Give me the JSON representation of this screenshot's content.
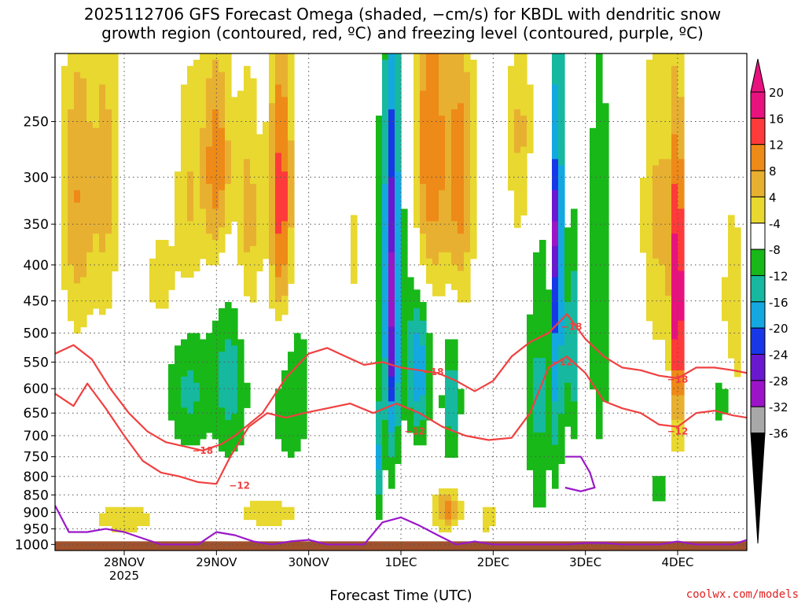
{
  "title": "2025112706 GFS Forecast Omega (shaded, −cm/s) for KBDL with dendritic snow\ngrowth region (contoured, red, ºC) and freezing level (contoured, purple, ºC)",
  "credit": "coolwx.com/models",
  "colors": {
    "strong_up": "#e8127e",
    "up_red": "#ff3a3a",
    "up_orange": "#ee8a18",
    "up_lightorange": "#e8b030",
    "up_yellow": "#e8d830",
    "down_green": "#18b818",
    "down_teal": "#16b8a0",
    "down_cyan": "#14a8e0",
    "down_blue": "#1838e8",
    "down_violet": "#6a18d0",
    "down_purple": "#9c14c8",
    "down_gray": "#a8a8a8",
    "ground": "#a0522d",
    "dgz_red": "#f04040",
    "freezing_purple": "#9a18c8",
    "grid": "#555555"
  },
  "chart_data": {
    "type": "heatmap",
    "title": "2025112706 GFS Forecast Omega (shaded, −cm/s) for KBDL with dendritic snow growth region (contoured, red, ºC) and freezing level (contoured, purple, ºC)",
    "xlabel": "Forecast Time (UTC)",
    "ylabel": "",
    "x_ticks": [
      {
        "value": 1.0,
        "label": "28NOV",
        "sublabel": "2025"
      },
      {
        "value": 2.0,
        "label": "29NOV"
      },
      {
        "value": 3.0,
        "label": "30NOV"
      },
      {
        "value": 4.0,
        "label": "1DEC"
      },
      {
        "value": 5.0,
        "label": "2DEC"
      },
      {
        "value": 6.0,
        "label": "3DEC"
      },
      {
        "value": 7.0,
        "label": "4DEC"
      }
    ],
    "xlim": [
      0.25,
      7.75
    ],
    "y_ticks": [
      250,
      300,
      350,
      400,
      450,
      500,
      550,
      600,
      650,
      700,
      750,
      800,
      850,
      900,
      950,
      1000
    ],
    "ylim": [
      1020,
      200
    ],
    "colorbar": {
      "labels": [
        20,
        16,
        12,
        8,
        4,
        -4,
        -8,
        -12,
        -16,
        -20,
        -24,
        -28,
        -32,
        -36
      ],
      "bands": [
        {
          "color": "#e8127e"
        },
        {
          "color": "#ff3a3a"
        },
        {
          "color": "#ee8a18"
        },
        {
          "color": "#e8b030"
        },
        {
          "color": "#e8d830"
        },
        {
          "color": "#ffffff"
        },
        {
          "color": "#18b818"
        },
        {
          "color": "#16b8a0"
        },
        {
          "color": "#14a8e0"
        },
        {
          "color": "#1838e8"
        },
        {
          "color": "#6a18d0"
        },
        {
          "color": "#9c14c8"
        },
        {
          "color": "#a8a8a8"
        }
      ]
    },
    "omega_features": [
      {
        "t": 0.5,
        "p": 320,
        "st": 0.18,
        "sp": 170,
        "v": 12
      },
      {
        "t": 0.8,
        "p": 300,
        "st": 0.14,
        "sp": 180,
        "v": 9
      },
      {
        "t": 1.4,
        "p": 420,
        "st": 0.16,
        "sp": 70,
        "v": 7
      },
      {
        "t": 1.7,
        "p": 330,
        "st": 0.15,
        "sp": 140,
        "v": 8
      },
      {
        "t": 2.0,
        "p": 290,
        "st": 0.16,
        "sp": 110,
        "v": 15
      },
      {
        "t": 2.35,
        "p": 350,
        "st": 0.14,
        "sp": 150,
        "v": 10
      },
      {
        "t": 2.7,
        "p": 330,
        "st": 0.13,
        "sp": 170,
        "v": 19
      },
      {
        "t": 3.5,
        "p": 380,
        "st": 0.1,
        "sp": 90,
        "v": 6
      },
      {
        "t": 4.3,
        "p": 280,
        "st": 0.22,
        "sp": 180,
        "v": 18
      },
      {
        "t": 4.65,
        "p": 300,
        "st": 0.15,
        "sp": 150,
        "v": 13
      },
      {
        "t": 5.3,
        "p": 260,
        "st": 0.14,
        "sp": 110,
        "v": 9
      },
      {
        "t": 6.8,
        "p": 340,
        "st": 0.2,
        "sp": 190,
        "v": 9
      },
      {
        "t": 7.0,
        "p": 460,
        "st": 0.07,
        "sp": 220,
        "v": 24
      },
      {
        "t": 7.6,
        "p": 500,
        "st": 0.14,
        "sp": 220,
        "v": 7
      },
      {
        "t": 1.7,
        "p": 600,
        "st": 0.24,
        "sp": 140,
        "v": -9
      },
      {
        "t": 2.15,
        "p": 580,
        "st": 0.2,
        "sp": 170,
        "v": -10
      },
      {
        "t": 2.8,
        "p": 600,
        "st": 0.26,
        "sp": 200,
        "v": -7
      },
      {
        "t": 3.9,
        "p": 450,
        "st": 0.08,
        "sp": 300,
        "v": -19
      },
      {
        "t": 4.2,
        "p": 560,
        "st": 0.12,
        "sp": 130,
        "v": -14
      },
      {
        "t": 4.55,
        "p": 620,
        "st": 0.1,
        "sp": 140,
        "v": -11
      },
      {
        "t": 3.75,
        "p": 760,
        "st": 0.05,
        "sp": 150,
        "v": -12
      },
      {
        "t": 4.0,
        "p": 380,
        "st": 0.35,
        "sp": 280,
        "v": -7
      },
      {
        "t": 5.7,
        "p": 400,
        "st": 0.05,
        "sp": 330,
        "v": -22
      },
      {
        "t": 5.7,
        "p": 360,
        "st": 0.025,
        "sp": 60,
        "v": -33
      },
      {
        "t": 5.5,
        "p": 620,
        "st": 0.14,
        "sp": 300,
        "v": -9
      },
      {
        "t": 5.85,
        "p": 520,
        "st": 0.07,
        "sp": 180,
        "v": -13
      },
      {
        "t": 6.15,
        "p": 430,
        "st": 0.12,
        "sp": 380,
        "v": -7
      },
      {
        "t": 6.8,
        "p": 830,
        "st": 0.09,
        "sp": 40,
        "v": -9
      },
      {
        "t": 7.5,
        "p": 620,
        "st": 0.12,
        "sp": 90,
        "v": -8
      },
      {
        "t": 1.0,
        "p": 920,
        "st": 0.45,
        "sp": 55,
        "v": 6
      },
      {
        "t": 2.6,
        "p": 900,
        "st": 0.5,
        "sp": 60,
        "v": 6
      },
      {
        "t": 4.5,
        "p": 890,
        "st": 0.15,
        "sp": 60,
        "v": 14
      },
      {
        "t": 4.95,
        "p": 920,
        "st": 0.14,
        "sp": 50,
        "v": 6
      }
    ],
    "series": [
      {
        "name": "−18",
        "color": "#f04040",
        "x": [
          0.25,
          0.45,
          0.65,
          0.85,
          1.05,
          1.25,
          1.45,
          1.65,
          1.85,
          2.05,
          2.2,
          2.5,
          2.75,
          3.0,
          3.2,
          3.4,
          3.6,
          3.8,
          4.0,
          4.2,
          4.4,
          4.6,
          4.8,
          5.0,
          5.2,
          5.4,
          5.6,
          5.8,
          6.0,
          6.2,
          6.4,
          6.6,
          6.8,
          7.0,
          7.2,
          7.4,
          7.6,
          7.75
        ],
        "y": [
          535,
          520,
          545,
          600,
          650,
          690,
          715,
          725,
          735,
          720,
          700,
          650,
          580,
          535,
          525,
          540,
          555,
          550,
          560,
          565,
          570,
          585,
          605,
          585,
          540,
          515,
          500,
          470,
          510,
          540,
          560,
          565,
          575,
          580,
          560,
          560,
          565,
          570
        ],
        "label_at": [
          [
            1.85,
            735
          ],
          [
            4.35,
            568
          ],
          [
            5.85,
            490
          ],
          [
            7.0,
            582
          ]
        ]
      },
      {
        "name": "−12",
        "color": "#f04040",
        "x": [
          0.25,
          0.45,
          0.6,
          0.8,
          1.0,
          1.2,
          1.4,
          1.6,
          1.8,
          2.0,
          2.15,
          2.35,
          2.55,
          2.75,
          2.95,
          3.2,
          3.45,
          3.7,
          3.95,
          4.2,
          4.45,
          4.7,
          4.95,
          5.2,
          5.4,
          5.6,
          5.8,
          6.0,
          6.2,
          6.4,
          6.6,
          6.8,
          7.0,
          7.2,
          7.4,
          7.6,
          7.75
        ],
        "y": [
          610,
          635,
          590,
          640,
          700,
          760,
          790,
          800,
          815,
          820,
          750,
          680,
          650,
          660,
          650,
          640,
          630,
          650,
          630,
          650,
          680,
          700,
          710,
          705,
          650,
          560,
          540,
          570,
          625,
          640,
          650,
          675,
          680,
          650,
          645,
          655,
          660
        ],
        "label_at": [
          [
            2.25,
            825
          ],
          [
            4.15,
            690
          ],
          [
            5.75,
            550
          ],
          [
            7.0,
            690
          ]
        ]
      },
      {
        "name": "",
        "color": "#9a18c8",
        "x": [
          0.25,
          0.4,
          0.6,
          0.8,
          1.0,
          1.2,
          1.4,
          1.6,
          1.8,
          2.0,
          2.2,
          2.4,
          2.6,
          2.8,
          3.0,
          3.2,
          3.4,
          3.6,
          3.8,
          4.0,
          4.2,
          4.4,
          4.6,
          4.8,
          5.0,
          5.2,
          5.4,
          5.6,
          5.8,
          6.0,
          6.2,
          6.4,
          6.6,
          6.8,
          7.0,
          7.2,
          7.4,
          7.6,
          7.75
        ],
        "y": [
          880,
          960,
          960,
          950,
          960,
          980,
          1000,
          1000,
          1000,
          960,
          970,
          990,
          1000,
          990,
          985,
          1000,
          1000,
          1000,
          930,
          915,
          940,
          970,
          1000,
          990,
          1000,
          1000,
          1000,
          1000,
          1000,
          995,
          995,
          1000,
          1000,
          1000,
          990,
          1000,
          1000,
          1000,
          985
        ]
      }
    ],
    "freezing_fragment": {
      "x": [
        5.78,
        5.95,
        6.05,
        6.1,
        5.95,
        5.78
      ],
      "y": [
        750,
        750,
        790,
        830,
        840,
        830
      ]
    },
    "ground_level": 1000
  }
}
